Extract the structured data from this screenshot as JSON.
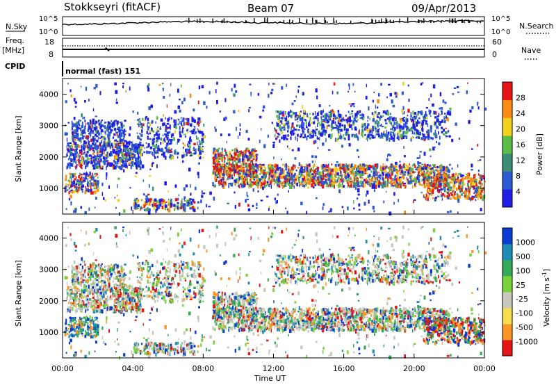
{
  "header": {
    "station": "Stokkseyri (fitACF)",
    "beam": "Beam 07",
    "date": "09/Apr/2013"
  },
  "strip": {
    "nsky_label": "N.Sky",
    "nsearch_label": "N.Search",
    "freq_label": "Freq.",
    "freq_unit": "[MHz]",
    "nave_label": "Nave",
    "cpid_label": "CPID",
    "cpid_value": "normal (fast) 151",
    "noise_ticks": [
      "10^5",
      "10^0"
    ],
    "freq_ticks": [
      "18",
      "8"
    ],
    "nave_ticks": [
      "60",
      "0"
    ]
  },
  "chart_data": [
    {
      "type": "heatmap",
      "name": "power-panel",
      "ylabel": "Slant Range [km]",
      "yticks": [
        "4000",
        "3000",
        "2000",
        "1000"
      ],
      "colorbar_label": "Power [dB]",
      "colorbar_ticks": [
        "28",
        "24",
        "20",
        "16",
        "12",
        "8",
        "4"
      ],
      "colorbar_colors": [
        "#1e1ee6",
        "#2d5ad2",
        "#3c8c78",
        "#5abe46",
        "#f0d21e",
        "#fa8c14",
        "#e61414"
      ],
      "ylim": [
        180,
        4500
      ]
    },
    {
      "type": "heatmap",
      "name": "velocity-panel",
      "ylabel": "Slant Range [km]",
      "yticks": [
        "4000",
        "3000",
        "2000",
        "1000"
      ],
      "colorbar_label": "Velocity [m s^-1]",
      "colorbar_ticks": [
        "1000",
        "500",
        "100",
        "25",
        "-25",
        "-100",
        "-500",
        "-1000"
      ],
      "colorbar_colors": [
        "#0a3cd2",
        "#1e8cb4",
        "#32aa5a",
        "#78d23c",
        "#c8c8bc",
        "#f5dc50",
        "#fa9628",
        "#e61414"
      ],
      "ylim": [
        180,
        4500
      ]
    }
  ],
  "xaxis": {
    "label": "Time UT",
    "ticks": [
      "00:00",
      "04:00",
      "08:00",
      "12:00",
      "16:00",
      "20:00",
      "00:00"
    ]
  }
}
